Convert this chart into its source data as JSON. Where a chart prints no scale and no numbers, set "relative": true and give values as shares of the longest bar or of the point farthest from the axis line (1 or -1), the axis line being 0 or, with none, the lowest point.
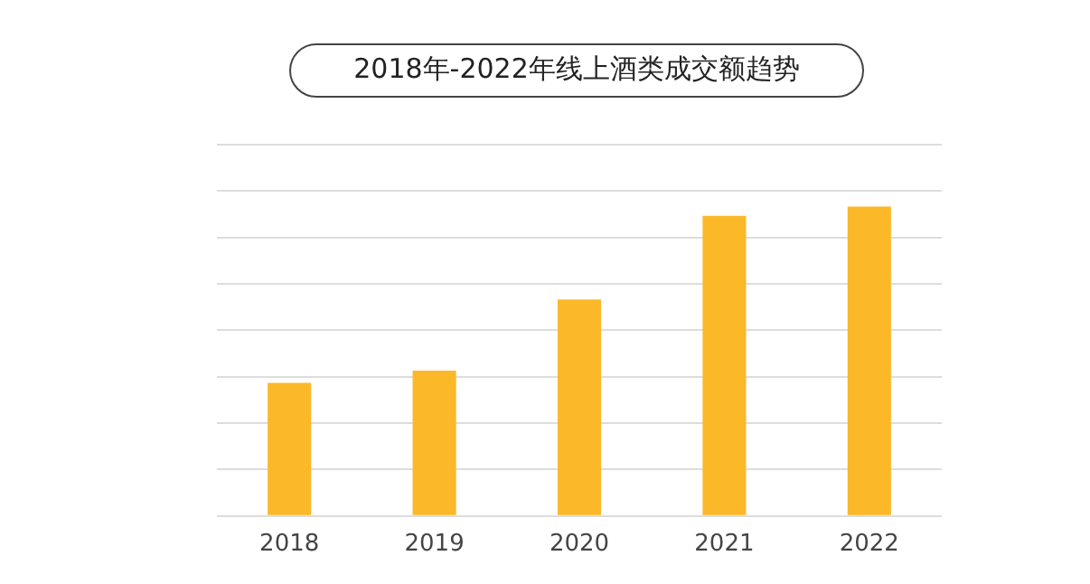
{
  "chart_data": {
    "type": "bar",
    "title": "2018年-2022年线上酒类成交额趋势",
    "categories": [
      "2018",
      "2019",
      "2020",
      "2021",
      "2022"
    ],
    "values": [
      0.43,
      0.47,
      0.7,
      0.97,
      1
    ],
    "color": "#fbb829",
    "relative": true,
    "grid": "y"
  }
}
